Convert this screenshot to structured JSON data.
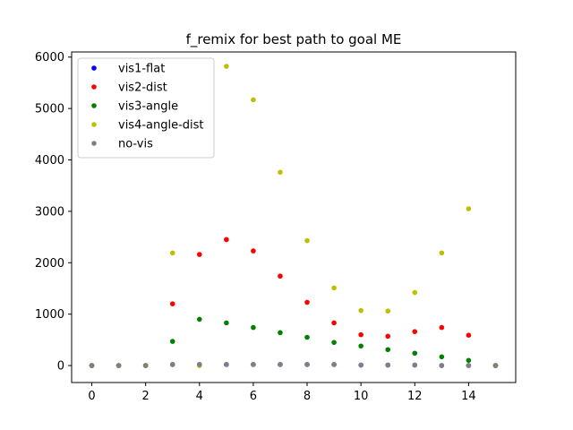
{
  "chart_data": {
    "type": "scatter",
    "title": "f_remix for best path to goal ME",
    "xlabel": "",
    "ylabel": "",
    "xlim": [
      -0.75,
      15.75
    ],
    "ylim": [
      -330,
      6100
    ],
    "x_ticks": [
      0,
      2,
      4,
      6,
      8,
      10,
      12,
      14
    ],
    "y_ticks": [
      0,
      1000,
      2000,
      3000,
      4000,
      5000,
      6000
    ],
    "x_tick_labels": [
      "0",
      "2",
      "4",
      "6",
      "8",
      "10",
      "12",
      "14"
    ],
    "y_tick_labels": [
      "0",
      "1000",
      "2000",
      "3000",
      "4000",
      "5000",
      "6000"
    ],
    "legend": {
      "placement": "upper-left"
    },
    "series": [
      {
        "name": "vis1-flat",
        "color": "#0000ff",
        "x": [
          0,
          1,
          2,
          3,
          4,
          5,
          6,
          7,
          8,
          9,
          10,
          11,
          12,
          13,
          14,
          15
        ],
        "y": [
          0,
          0,
          0,
          20,
          20,
          20,
          20,
          20,
          20,
          20,
          10,
          10,
          10,
          0,
          0,
          0
        ]
      },
      {
        "name": "vis2-dist",
        "color": "#ff0000",
        "x": [
          0,
          1,
          2,
          3,
          4,
          5,
          6,
          7,
          8,
          9,
          10,
          11,
          12,
          13,
          14,
          15
        ],
        "y": [
          0,
          0,
          0,
          1200,
          2160,
          2450,
          2230,
          1740,
          1230,
          830,
          600,
          570,
          660,
          740,
          590,
          0
        ]
      },
      {
        "name": "vis3-angle",
        "color": "#008000",
        "x": [
          0,
          1,
          2,
          3,
          4,
          5,
          6,
          7,
          8,
          9,
          10,
          11,
          12,
          13,
          14,
          15
        ],
        "y": [
          0,
          0,
          0,
          470,
          900,
          830,
          740,
          640,
          550,
          450,
          380,
          310,
          240,
          170,
          100,
          0
        ]
      },
      {
        "name": "vis4-angle-dist",
        "color": "#bfbf00",
        "x": [
          0,
          1,
          2,
          3,
          4,
          5,
          6,
          7,
          8,
          9,
          10,
          11,
          12,
          13,
          14,
          15
        ],
        "y": [
          0,
          0,
          0,
          2190,
          0,
          5820,
          5170,
          3760,
          2430,
          1510,
          1070,
          1060,
          1420,
          2190,
          3050,
          0
        ]
      },
      {
        "name": "no-vis",
        "color": "#808080",
        "x": [
          0,
          1,
          2,
          3,
          4,
          5,
          6,
          7,
          8,
          9,
          10,
          11,
          12,
          13,
          14,
          15
        ],
        "y": [
          0,
          0,
          0,
          20,
          20,
          20,
          20,
          20,
          20,
          20,
          10,
          10,
          10,
          0,
          0,
          0
        ]
      }
    ]
  }
}
